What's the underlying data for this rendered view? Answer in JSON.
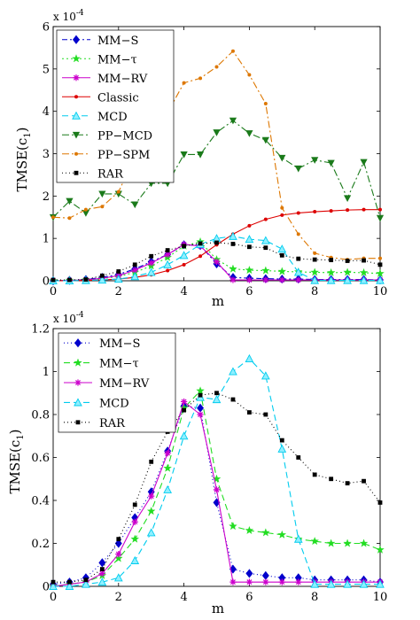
{
  "chart_data": [
    {
      "type": "line",
      "title": "",
      "xlabel": "m",
      "ylabel": "TMSE(c1)",
      "ylabel_main": "TMSE(c",
      "ylabel_sub": "1",
      "ylabel_close": ")",
      "scale_mult": "x 10",
      "scale_exp": "-4",
      "xlim": [
        0,
        10
      ],
      "ylim": [
        0,
        6
      ],
      "xticks": [
        "0",
        "2",
        "4",
        "6",
        "8",
        "10"
      ],
      "yticks": [
        "0",
        "1",
        "2",
        "3",
        "4",
        "5",
        "6"
      ],
      "legend_position": "top-left",
      "grid": false,
      "x": [
        0,
        0.5,
        1,
        1.5,
        2,
        2.5,
        3,
        3.5,
        4,
        4.5,
        5,
        5.5,
        6,
        6.5,
        7,
        7.5,
        8,
        8.5,
        9,
        9.5,
        10
      ],
      "series": [
        {
          "name": "MM−S",
          "color": "#0000cc",
          "marker": "diamond",
          "dash": "6,3,2,3",
          "values": [
            0.0,
            0.01,
            0.03,
            0.08,
            0.15,
            0.28,
            0.45,
            0.62,
            0.85,
            0.83,
            0.4,
            0.08,
            0.06,
            0.05,
            0.04,
            0.04,
            0.03,
            0.03,
            0.03,
            0.03,
            0.02
          ]
        },
        {
          "name": "MM−τ",
          "color": "#22dd22",
          "marker": "star",
          "dash": "2,3",
          "values": [
            0.0,
            0.01,
            0.02,
            0.05,
            0.1,
            0.2,
            0.35,
            0.55,
            0.82,
            0.92,
            0.5,
            0.28,
            0.25,
            0.24,
            0.22,
            0.21,
            0.2,
            0.19,
            0.2,
            0.19,
            0.17
          ]
        },
        {
          "name": "MM−RV",
          "color": "#cc00cc",
          "marker": "asterisk",
          "dash": "",
          "values": [
            0.0,
            0.01,
            0.02,
            0.06,
            0.12,
            0.25,
            0.42,
            0.62,
            0.86,
            0.82,
            0.45,
            0.02,
            0.02,
            0.02,
            0.02,
            0.02,
            0.02,
            0.02,
            0.02,
            0.02,
            0.02
          ]
        },
        {
          "name": "Classic",
          "color": "#dd0000",
          "marker": "dot",
          "dash": "",
          "values": [
            0.0,
            0.0,
            0.01,
            0.02,
            0.04,
            0.08,
            0.14,
            0.24,
            0.38,
            0.58,
            0.85,
            1.1,
            1.3,
            1.45,
            1.55,
            1.6,
            1.63,
            1.65,
            1.67,
            1.68,
            1.68
          ]
        },
        {
          "name": "MCD",
          "color": "#00ccee",
          "marker": "triangle",
          "dash": "7,4",
          "values": [
            0.0,
            0.0,
            0.01,
            0.02,
            0.04,
            0.1,
            0.2,
            0.38,
            0.6,
            0.86,
            1.0,
            1.05,
            0.98,
            0.95,
            0.75,
            0.2,
            0.01,
            0.01,
            0.01,
            0.01,
            0.01
          ]
        },
        {
          "name": "PP−MCD",
          "color": "#1a7a1a",
          "marker": "triangle-down",
          "dash": "8,3,2,3",
          "values": [
            1.5,
            1.88,
            1.6,
            2.05,
            2.05,
            1.8,
            2.3,
            2.3,
            2.98,
            2.98,
            3.5,
            3.78,
            3.48,
            3.32,
            2.9,
            2.65,
            2.85,
            2.78,
            1.95,
            2.8,
            1.48
          ]
        },
        {
          "name": "PP−SPM",
          "color": "#dd7700",
          "marker": "dot",
          "dash": "8,3,2,3",
          "values": [
            1.5,
            1.48,
            1.68,
            1.75,
            2.1,
            2.92,
            3.35,
            3.97,
            4.67,
            4.78,
            5.05,
            5.42,
            4.86,
            4.18,
            1.72,
            1.1,
            0.65,
            0.55,
            0.5,
            0.53,
            0.53
          ]
        },
        {
          "name": "RAR",
          "color": "#000000",
          "marker": "square",
          "dash": "1,3",
          "values": [
            0.02,
            0.02,
            0.03,
            0.12,
            0.22,
            0.38,
            0.58,
            0.72,
            0.82,
            0.88,
            0.9,
            0.87,
            0.8,
            0.78,
            0.6,
            0.52,
            0.5,
            0.49,
            0.47,
            0.48,
            0.38
          ]
        }
      ]
    },
    {
      "type": "line",
      "title": "",
      "xlabel": "m",
      "ylabel": "TMSE(c1)",
      "ylabel_main": "TMSE(c",
      "ylabel_sub": "1",
      "ylabel_close": ")",
      "scale_mult": "x 10",
      "scale_exp": "-4",
      "xlim": [
        0,
        10
      ],
      "ylim": [
        0,
        1.2
      ],
      "xticks": [
        "0",
        "2",
        "4",
        "6",
        "8",
        "10"
      ],
      "yticks": [
        "0",
        "0.2",
        "0.4",
        "0.6",
        "0.8",
        "1",
        "1.2"
      ],
      "legend_position": "top-left",
      "grid": false,
      "x": [
        0,
        0.5,
        1,
        1.5,
        2,
        2.5,
        3,
        3.5,
        4,
        4.5,
        5,
        5.5,
        6,
        6.5,
        7,
        7.5,
        8,
        8.5,
        9,
        9.5,
        10
      ],
      "series": [
        {
          "name": "MM−S",
          "color": "#0000cc",
          "marker": "diamond",
          "dash": "1,3",
          "values": [
            0.01,
            0.02,
            0.04,
            0.11,
            0.2,
            0.32,
            0.44,
            0.63,
            0.84,
            0.83,
            0.39,
            0.08,
            0.06,
            0.05,
            0.04,
            0.04,
            0.03,
            0.03,
            0.03,
            0.03,
            0.02
          ]
        },
        {
          "name": "MM−τ",
          "color": "#22dd22",
          "marker": "star",
          "dash": "7,4",
          "values": [
            0.0,
            0.01,
            0.02,
            0.05,
            0.13,
            0.22,
            0.35,
            0.55,
            0.83,
            0.91,
            0.5,
            0.28,
            0.26,
            0.25,
            0.24,
            0.22,
            0.21,
            0.2,
            0.2,
            0.2,
            0.17
          ]
        },
        {
          "name": "MM−RV",
          "color": "#cc00cc",
          "marker": "asterisk",
          "dash": "",
          "values": [
            0.0,
            0.01,
            0.02,
            0.06,
            0.15,
            0.3,
            0.42,
            0.62,
            0.86,
            0.8,
            0.45,
            0.02,
            0.02,
            0.02,
            0.02,
            0.02,
            0.02,
            0.02,
            0.02,
            0.02,
            0.02
          ]
        },
        {
          "name": "MCD",
          "color": "#00ccee",
          "marker": "triangle",
          "dash": "7,4",
          "values": [
            0.0,
            0.0,
            0.01,
            0.02,
            0.04,
            0.12,
            0.25,
            0.45,
            0.7,
            0.88,
            0.87,
            1.0,
            1.06,
            0.98,
            0.64,
            0.22,
            0.01,
            0.01,
            0.01,
            0.01,
            0.01
          ]
        },
        {
          "name": "RAR",
          "color": "#000000",
          "marker": "square",
          "dash": "1,3",
          "values": [
            0.02,
            0.02,
            0.03,
            0.08,
            0.22,
            0.38,
            0.58,
            0.72,
            0.82,
            0.89,
            0.9,
            0.87,
            0.81,
            0.8,
            0.68,
            0.6,
            0.52,
            0.5,
            0.48,
            0.49,
            0.39
          ]
        }
      ]
    }
  ]
}
